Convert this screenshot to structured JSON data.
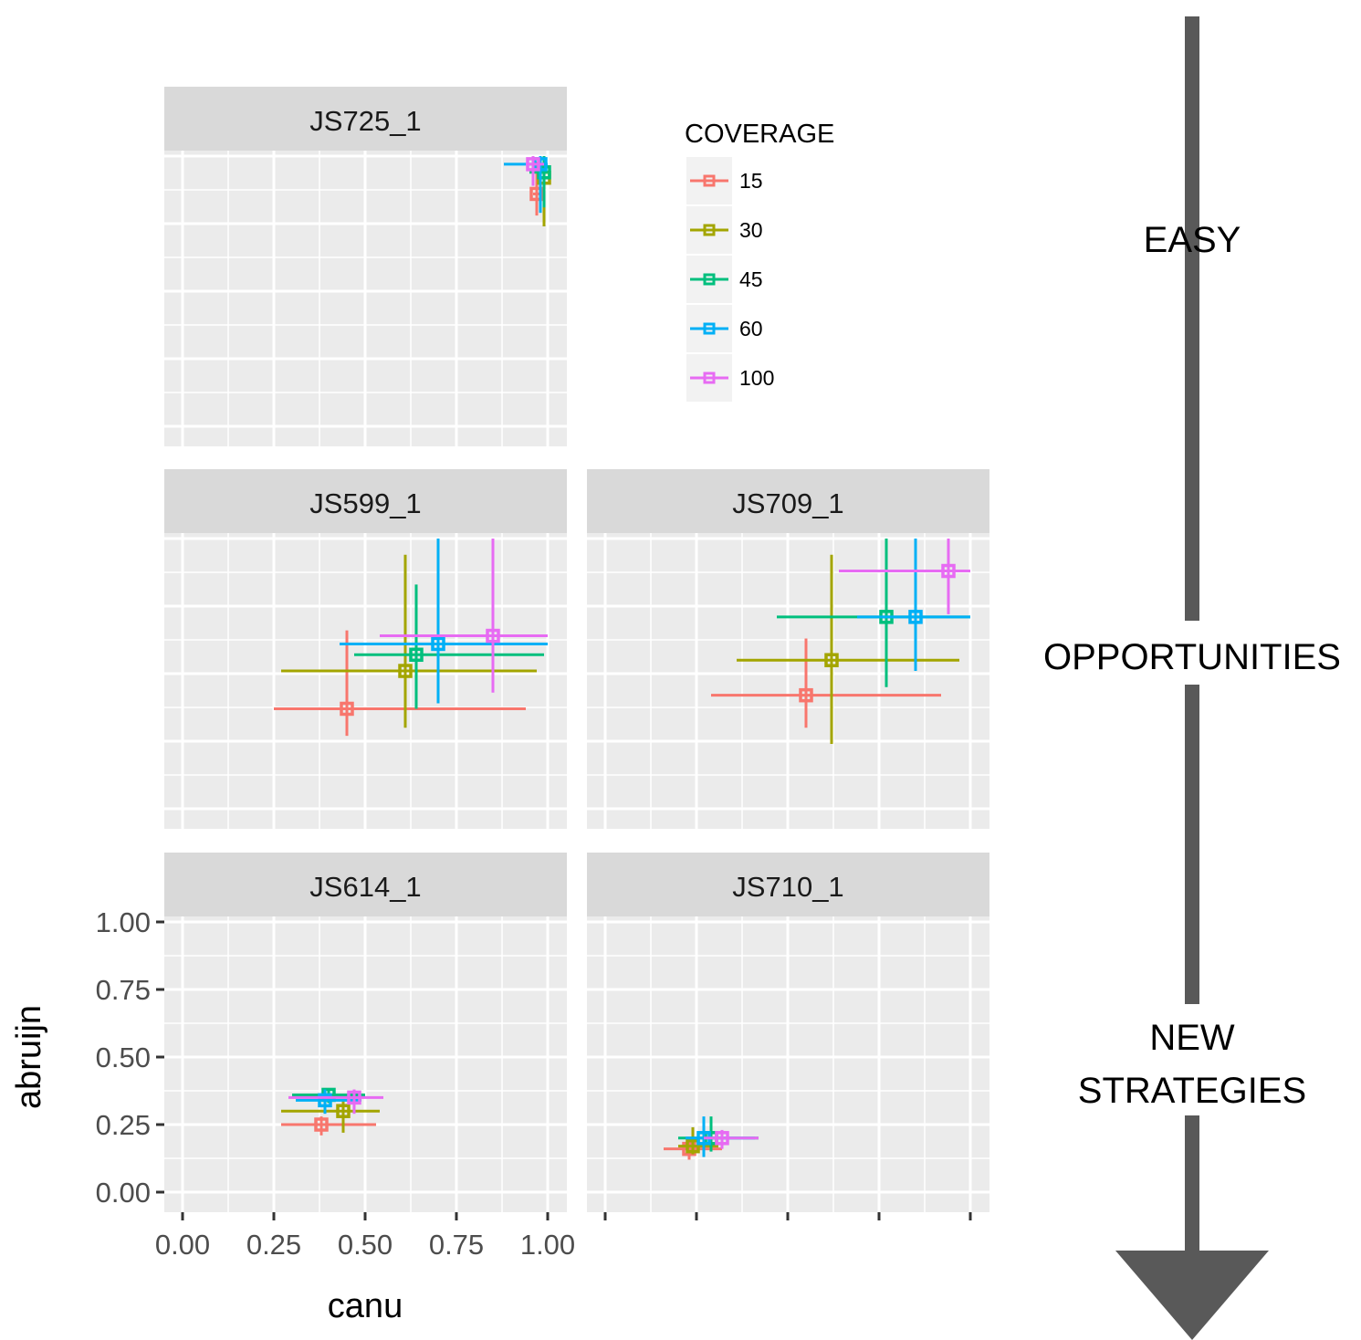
{
  "chart_data": {
    "type": "scatter",
    "subtype": "faceted scatter with error bars (crosshairs)",
    "xlabel": "canu",
    "ylabel": "abruijn",
    "xlim": [
      0,
      1
    ],
    "ylim": [
      0,
      1
    ],
    "x_ticks": [
      "0.00",
      "0.25",
      "0.50",
      "0.75",
      "1.00"
    ],
    "y_ticks": [
      "0.00",
      "0.25",
      "0.50",
      "0.75",
      "1.00"
    ],
    "grid": true,
    "legend": {
      "title": "COVERAGE",
      "position": "top-right",
      "entries": [
        {
          "label": "15",
          "color": "#F8766D"
        },
        {
          "label": "30",
          "color": "#A3A500"
        },
        {
          "label": "45",
          "color": "#00BF7D"
        },
        {
          "label": "60",
          "color": "#00B0F6"
        },
        {
          "label": "100",
          "color": "#E76BF3"
        }
      ]
    },
    "annotations": [
      "EASY",
      "OPPORTUNITIES",
      "NEW",
      "STRATEGIES"
    ],
    "arrow_color": "#595959",
    "facets": [
      {
        "label": "JS725_1",
        "points": [
          {
            "coverage": "15",
            "x": 0.97,
            "y": 0.86,
            "xerr": [
              0.96,
              0.99
            ],
            "yerr": [
              0.78,
              0.98
            ]
          },
          {
            "coverage": "30",
            "x": 0.99,
            "y": 0.92,
            "xerr": [
              0.98,
              1.0
            ],
            "yerr": [
              0.74,
              1.0
            ]
          },
          {
            "coverage": "45",
            "x": 0.99,
            "y": 0.94,
            "xerr": [
              0.95,
              1.0
            ],
            "yerr": [
              0.81,
              1.0
            ]
          },
          {
            "coverage": "60",
            "x": 0.98,
            "y": 0.97,
            "xerr": [
              0.88,
              1.0
            ],
            "yerr": [
              0.79,
              1.0
            ]
          },
          {
            "coverage": "100",
            "x": 0.96,
            "y": 0.97,
            "xerr": [
              0.94,
              0.99
            ],
            "yerr": [
              0.89,
              1.0
            ]
          }
        ]
      },
      {
        "label": "JS599_1",
        "points": [
          {
            "coverage": "15",
            "x": 0.45,
            "y": 0.37,
            "xerr": [
              0.25,
              0.94
            ],
            "yerr": [
              0.27,
              0.66
            ]
          },
          {
            "coverage": "30",
            "x": 0.61,
            "y": 0.51,
            "xerr": [
              0.27,
              0.97
            ],
            "yerr": [
              0.3,
              0.94
            ]
          },
          {
            "coverage": "45",
            "x": 0.64,
            "y": 0.57,
            "xerr": [
              0.47,
              0.99
            ],
            "yerr": [
              0.37,
              0.83
            ]
          },
          {
            "coverage": "60",
            "x": 0.7,
            "y": 0.61,
            "xerr": [
              0.43,
              1.0
            ],
            "yerr": [
              0.39,
              1.0
            ]
          },
          {
            "coverage": "100",
            "x": 0.85,
            "y": 0.64,
            "xerr": [
              0.54,
              1.0
            ],
            "yerr": [
              0.43,
              1.0
            ]
          }
        ]
      },
      {
        "label": "JS709_1",
        "points": [
          {
            "coverage": "15",
            "x": 0.55,
            "y": 0.42,
            "xerr": [
              0.29,
              0.92
            ],
            "yerr": [
              0.3,
              0.63
            ]
          },
          {
            "coverage": "30",
            "x": 0.62,
            "y": 0.55,
            "xerr": [
              0.36,
              0.97
            ],
            "yerr": [
              0.24,
              0.94
            ]
          },
          {
            "coverage": "45",
            "x": 0.77,
            "y": 0.71,
            "xerr": [
              0.47,
              1.0
            ],
            "yerr": [
              0.45,
              1.0
            ]
          },
          {
            "coverage": "60",
            "x": 0.85,
            "y": 0.71,
            "xerr": [
              0.69,
              1.0
            ],
            "yerr": [
              0.51,
              1.0
            ]
          },
          {
            "coverage": "100",
            "x": 0.94,
            "y": 0.88,
            "xerr": [
              0.64,
              1.0
            ],
            "yerr": [
              0.72,
              1.0
            ]
          }
        ]
      },
      {
        "label": "JS614_1",
        "points": [
          {
            "coverage": "15",
            "x": 0.38,
            "y": 0.25,
            "xerr": [
              0.27,
              0.53
            ],
            "yerr": [
              0.21,
              0.28
            ]
          },
          {
            "coverage": "30",
            "x": 0.44,
            "y": 0.3,
            "xerr": [
              0.27,
              0.54
            ],
            "yerr": [
              0.22,
              0.34
            ]
          },
          {
            "coverage": "45",
            "x": 0.4,
            "y": 0.36,
            "xerr": [
              0.3,
              0.5
            ],
            "yerr": [
              0.33,
              0.38
            ]
          },
          {
            "coverage": "60",
            "x": 0.39,
            "y": 0.34,
            "xerr": [
              0.31,
              0.49
            ],
            "yerr": [
              0.29,
              0.38
            ]
          },
          {
            "coverage": "100",
            "x": 0.47,
            "y": 0.35,
            "xerr": [
              0.29,
              0.55
            ],
            "yerr": [
              0.29,
              0.38
            ]
          }
        ]
      },
      {
        "label": "JS710_1",
        "points": [
          {
            "coverage": "15",
            "x": 0.23,
            "y": 0.16,
            "xerr": [
              0.16,
              0.32
            ],
            "yerr": [
              0.12,
              0.19
            ]
          },
          {
            "coverage": "30",
            "x": 0.24,
            "y": 0.17,
            "xerr": [
              0.2,
              0.31
            ],
            "yerr": [
              0.14,
              0.24
            ]
          },
          {
            "coverage": "45",
            "x": 0.29,
            "y": 0.2,
            "xerr": [
              0.2,
              0.42
            ],
            "yerr": [
              0.15,
              0.28
            ]
          },
          {
            "coverage": "60",
            "x": 0.27,
            "y": 0.2,
            "xerr": [
              0.22,
              0.41
            ],
            "yerr": [
              0.13,
              0.28
            ]
          },
          {
            "coverage": "100",
            "x": 0.32,
            "y": 0.2,
            "xerr": [
              0.27,
              0.42
            ],
            "yerr": [
              0.16,
              0.23
            ]
          }
        ]
      }
    ]
  }
}
